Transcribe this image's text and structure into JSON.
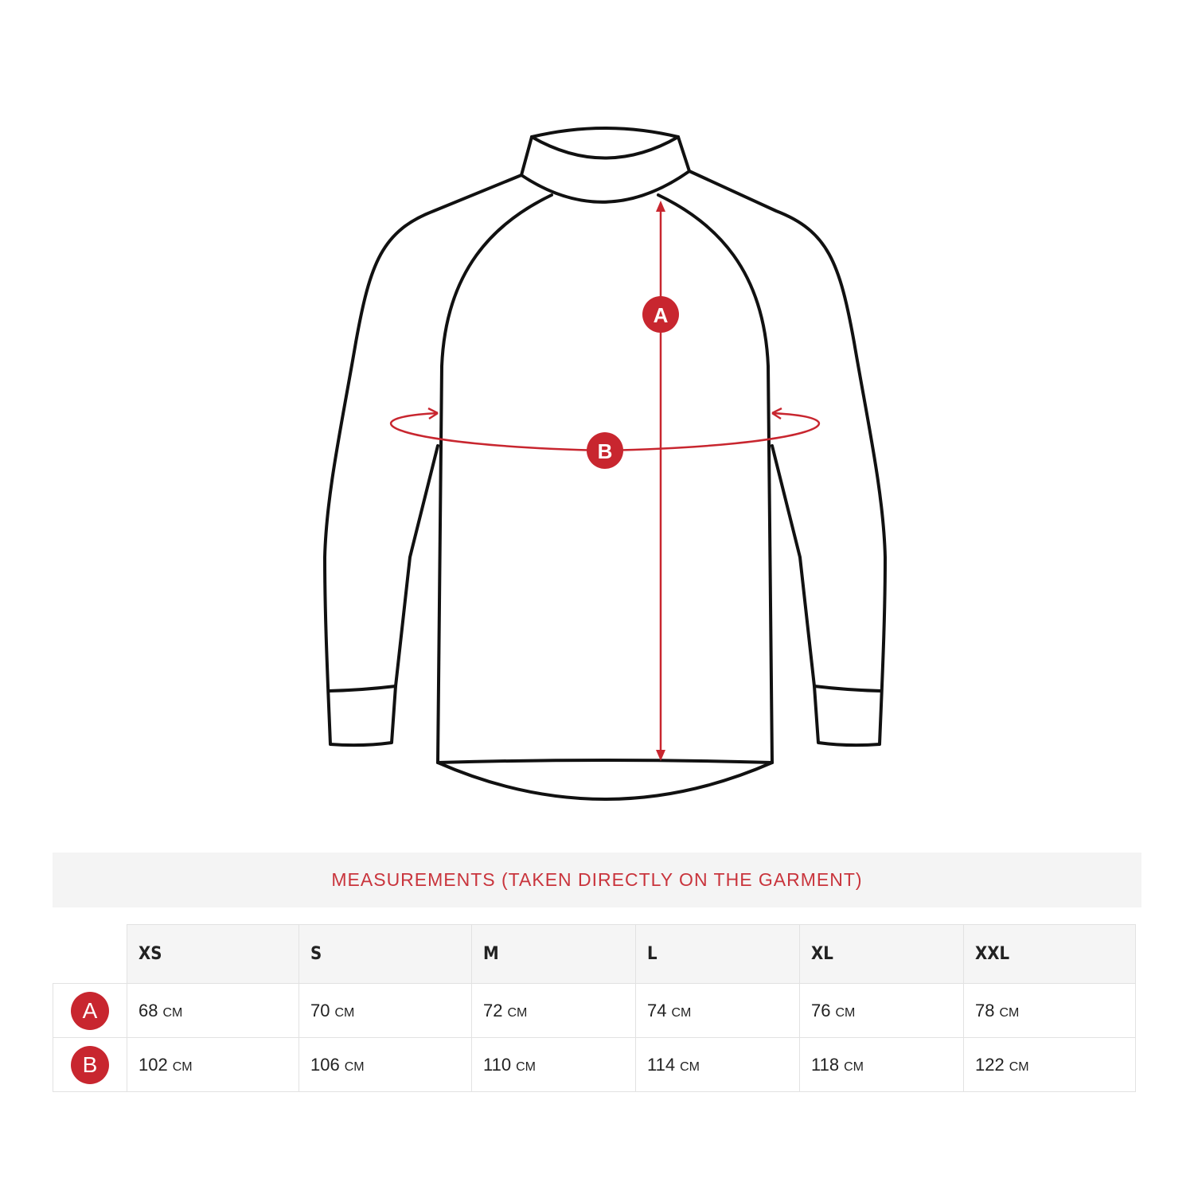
{
  "diagram": {
    "markers": {
      "a": "A",
      "b": "B"
    },
    "accent_color": "#c8262f",
    "outline_color": "#111111"
  },
  "table": {
    "title": "MEASUREMENTS (TAKEN DIRECTLY ON THE GARMENT)",
    "sizes": [
      "XS",
      "S",
      "M",
      "L",
      "XL",
      "XXL"
    ],
    "unit": "CM",
    "rows": [
      {
        "label": "A",
        "values": [
          "68",
          "70",
          "72",
          "74",
          "76",
          "78"
        ]
      },
      {
        "label": "B",
        "values": [
          "102",
          "106",
          "110",
          "114",
          "118",
          "122"
        ]
      }
    ]
  }
}
